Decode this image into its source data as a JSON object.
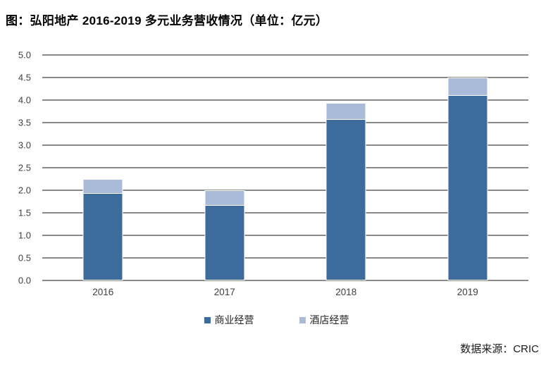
{
  "title": "图：弘阳地产 2016-2019 多元业务营收情况（单位：亿元）",
  "source": "数据来源：CRIC",
  "colors": {
    "series_commercial": "#3D6B9C",
    "series_hotel": "#A9BBD9",
    "gridline": "#8A8A8A",
    "axis_text": "#404040",
    "title_text": "#000000",
    "background": "#FFFFFF"
  },
  "chart_data": {
    "type": "bar",
    "stacked": true,
    "title": "图：弘阳地产 2016-2019 多元业务营收情况（单位：亿元）",
    "categories": [
      "2016",
      "2017",
      "2018",
      "2019"
    ],
    "series": [
      {
        "name": "商业经营",
        "color": "#3D6B9C",
        "values": [
          1.92,
          1.66,
          3.56,
          4.1
        ]
      },
      {
        "name": "酒店经营",
        "color": "#A9BBD9",
        "values": [
          0.33,
          0.34,
          0.38,
          0.4
        ]
      }
    ],
    "xlabel": "",
    "ylabel": "",
    "ylim": [
      0,
      5
    ],
    "ytick_step": 0.5,
    "ytick_labels": [
      "0.0",
      "0.5",
      "1.0",
      "1.5",
      "2.0",
      "2.5",
      "3.0",
      "3.5",
      "4.0",
      "4.5",
      "5.0"
    ],
    "grid": true,
    "legend_position": "bottom",
    "legend_entries": [
      "商业经营",
      "酒店经营"
    ],
    "source_note": "数据来源：CRIC"
  }
}
